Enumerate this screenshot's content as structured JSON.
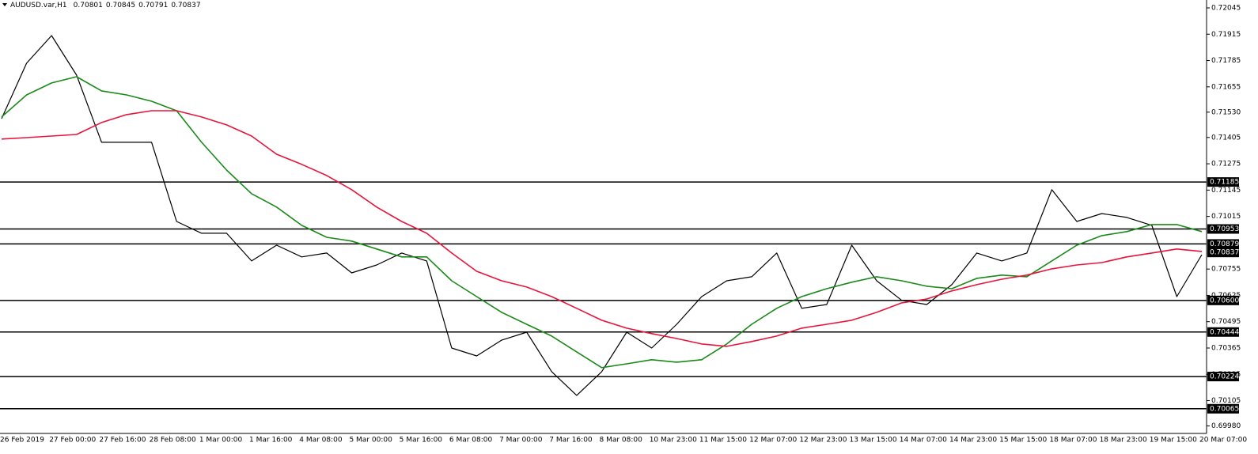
{
  "chart_data": {
    "type": "line",
    "title": "AUDUSD.var,H1",
    "ohlc": [
      0.70801,
      0.70845,
      0.70791,
      0.70837
    ],
    "categories": [
      "26 Feb 2019",
      null,
      "27 Feb 00:00",
      null,
      "27 Feb 16:00",
      null,
      "28 Feb 08:00",
      null,
      "1 Mar 00:00",
      null,
      "1 Mar 16:00",
      null,
      "4 Mar 08:00",
      null,
      "5 Mar 00:00",
      null,
      "5 Mar 16:00",
      null,
      "6 Mar 08:00",
      null,
      "7 Mar 00:00",
      null,
      "7 Mar 16:00",
      null,
      "8 Mar 08:00",
      null,
      "10 Mar 23:00",
      null,
      "11 Mar 15:00",
      null,
      "12 Mar 07:00",
      null,
      "12 Mar 23:00",
      null,
      "13 Mar 15:00",
      null,
      "14 Mar 07:00",
      null,
      "14 Mar 23:00",
      null,
      "15 Mar 15:00",
      null,
      "18 Mar 07:00",
      null,
      "18 Mar 23:00",
      null,
      "19 Mar 15:00",
      null,
      "20 Mar 07:00"
    ],
    "series": [
      {
        "color": "#000000",
        "values": [
          0.71498,
          0.71772,
          0.71908,
          0.71713,
          0.71381,
          0.71381,
          0.71381,
          0.7099,
          0.70932,
          0.70932,
          0.70795,
          0.70873,
          0.70815,
          0.70834,
          0.70736,
          0.70775,
          0.70834,
          0.70795,
          0.70365,
          0.70326,
          0.70404,
          0.70443,
          0.70248,
          0.70131,
          0.70248,
          0.70443,
          0.70365,
          0.70482,
          0.70619,
          0.70697,
          0.70717,
          0.70834,
          0.70561,
          0.7058,
          0.70873,
          0.70697,
          0.706,
          0.7058,
          0.70678,
          0.70834,
          0.70795,
          0.70834,
          0.71147,
          0.7099,
          0.71029,
          0.7101,
          0.70971,
          0.70619,
          0.70826
        ]
      },
      {
        "color": "#1a8a1a",
        "values": [
          0.71506,
          0.71615,
          0.71674,
          0.71705,
          0.71635,
          0.71615,
          0.71584,
          0.71537,
          0.71381,
          0.71244,
          0.71127,
          0.71061,
          0.70971,
          0.70912,
          0.70893,
          0.70854,
          0.70815,
          0.70815,
          0.70697,
          0.70619,
          0.70541,
          0.70482,
          0.70424,
          0.70346,
          0.70268,
          0.70287,
          0.70307,
          0.70295,
          0.70307,
          0.70385,
          0.70482,
          0.70561,
          0.70619,
          0.70658,
          0.7069,
          0.70717,
          0.70697,
          0.7067,
          0.70658,
          0.70709,
          0.70725,
          0.70717,
          0.70795,
          0.70873,
          0.7092,
          0.7094,
          0.70975,
          0.70975,
          0.7094
        ]
      },
      {
        "color": "#e8143c",
        "values": [
          0.71397,
          0.71404,
          0.71412,
          0.7142,
          0.71479,
          0.71518,
          0.71537,
          0.71537,
          0.71506,
          0.71467,
          0.71412,
          0.71322,
          0.71272,
          0.71217,
          0.71147,
          0.71061,
          0.7099,
          0.70932,
          0.70834,
          0.70744,
          0.70697,
          0.70666,
          0.70619,
          0.70561,
          0.70502,
          0.70463,
          0.70436,
          0.70412,
          0.70385,
          0.70373,
          0.70397,
          0.70424,
          0.70463,
          0.70482,
          0.70502,
          0.70541,
          0.70588,
          0.70607,
          0.70647,
          0.70678,
          0.70705,
          0.70725,
          0.70756,
          0.70775,
          0.70787,
          0.70815,
          0.70834,
          0.70854,
          0.70842
        ]
      }
    ],
    "ylim": [
      0.69943,
      0.72084
    ],
    "yticks": [
      0.72045,
      0.71915,
      0.71785,
      0.71655,
      {
        "value": 0.7153,
        "label": "0.71530"
      },
      0.71405,
      0.71275,
      0.71145,
      0.71015,
      0.70755,
      0.70625,
      0.70495,
      0.70365,
      0.70235,
      0.70105,
      {
        "value": 0.6998,
        "label": "0.69980"
      }
    ],
    "levels": [
      0.71185,
      0.70953,
      0.70879,
      {
        "value": 0.706,
        "label": "0.70600"
      },
      0.70444,
      0.70224,
      0.70065
    ],
    "last_price": 0.70837
  }
}
